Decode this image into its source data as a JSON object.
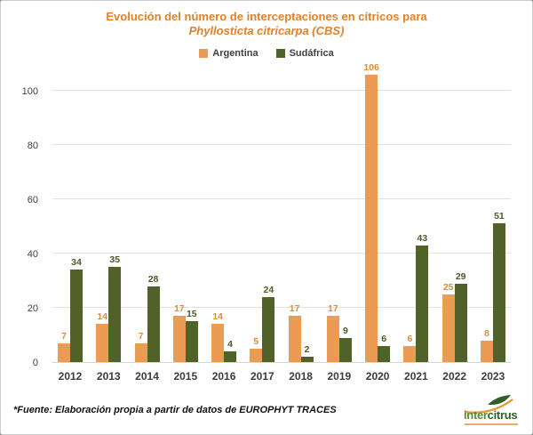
{
  "title": {
    "line1": "Evolución del número de interceptaciones en cítricos para",
    "line2": "Phyllosticta citricarpa (CBS)"
  },
  "legend": [
    {
      "label": "Argentina",
      "color": "#EC9B53"
    },
    {
      "label": "Sudáfrica",
      "color": "#4F6228"
    }
  ],
  "chart_data": {
    "type": "bar",
    "title": "Evolución del número de interceptaciones en cítricos para Phyllosticta citricarpa (CBS)",
    "categories": [
      "2012",
      "2013",
      "2014",
      "2015",
      "2016",
      "2017",
      "2018",
      "2019",
      "2020",
      "2021",
      "2022",
      "2023"
    ],
    "series": [
      {
        "name": "Argentina",
        "color": "#EC9B53",
        "label_color": "#D98E3F",
        "values": [
          7,
          14,
          7,
          17,
          14,
          5,
          17,
          17,
          106,
          6,
          25,
          8
        ]
      },
      {
        "name": "Sudáfrica",
        "color": "#4F6228",
        "label_color": "#4C5A29",
        "values": [
          34,
          35,
          28,
          15,
          4,
          24,
          2,
          9,
          6,
          43,
          29,
          51
        ]
      }
    ],
    "xlabel": "",
    "ylabel": "",
    "ylim": [
      0,
      100
    ],
    "yticks": [
      0,
      20,
      40,
      60,
      80,
      100
    ],
    "grid": true,
    "legend_position": "top",
    "data_labels": true
  },
  "footer": {
    "source": "*Fuente: Elaboración propia a partir de datos de EUROPHYT TRACES",
    "logo": {
      "part1": "inter",
      "part2": "citrus"
    }
  },
  "colors": {
    "title": "#E0812C",
    "gridline": "#E2E2E2",
    "axis_text": "#404040",
    "year_text": "#3B3B3B",
    "background": "#FFFFFF",
    "logo_green": "#2F5E28",
    "logo_orange": "#E8943A"
  }
}
